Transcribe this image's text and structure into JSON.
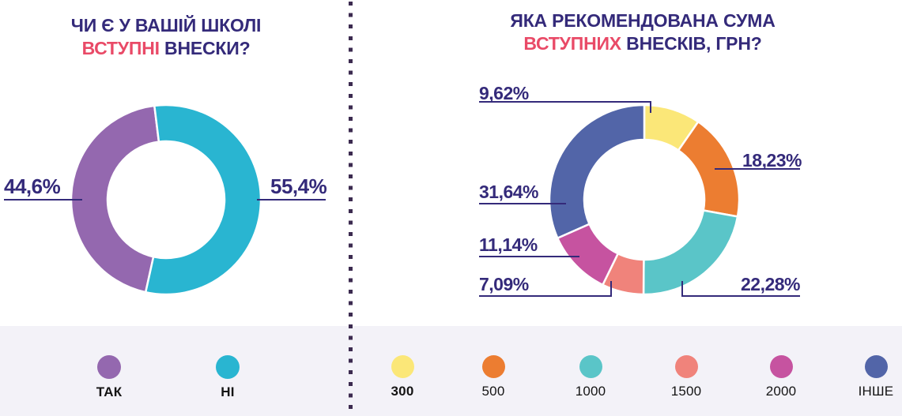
{
  "colors": {
    "canvas_bg": "#ffffff",
    "legend_band_bg": "#f3f2f8",
    "divider_dot": "#3c2b50",
    "title_navy": "#342a7a",
    "title_accent_pink": "#e94a67",
    "leader_line": "#342a7a",
    "legend_text": "#141414"
  },
  "chart_data": [
    {
      "type": "donut",
      "title_line1": "ЧИ Є У ВАШІЙ ШКОЛІ",
      "title_line2_accent": "ВСТУПНІ",
      "title_line2_rest": "ВНЕСКИ?",
      "legend_position": "bottom",
      "start_angle_deg": 192.4,
      "slices": [
        {
          "label": "ТАК",
          "value_pct": 44.6,
          "display": "44,6%",
          "color": "#9468af"
        },
        {
          "label": "НІ",
          "value_pct": 55.4,
          "display": "55,4%",
          "color": "#29b5d1"
        }
      ]
    },
    {
      "type": "donut",
      "title_line1": "ЯКА РЕКОМЕНДОВАНА СУМА",
      "title_line2_accent": "ВСТУПНИХ",
      "title_line2_rest": "ВНЕСКІВ, ГРН?",
      "legend_position": "bottom",
      "units": "грн",
      "start_angle_deg": 0,
      "slices": [
        {
          "label": "300",
          "value_pct": 9.62,
          "display": "9,62%",
          "color": "#fbe778"
        },
        {
          "label": "500",
          "value_pct": 18.23,
          "display": "18,23%",
          "color": "#ec7d31"
        },
        {
          "label": "1000",
          "value_pct": 22.28,
          "display": "22,28%",
          "color": "#5ac5c8"
        },
        {
          "label": "1500",
          "value_pct": 7.09,
          "display": "7,09%",
          "color": "#f0837b"
        },
        {
          "label": "2000",
          "value_pct": 11.14,
          "display": "11,14%",
          "color": "#c653a0"
        },
        {
          "label": "ІНШЕ",
          "value_pct": 31.64,
          "display": "31,64%",
          "color": "#5265a8"
        }
      ]
    }
  ]
}
